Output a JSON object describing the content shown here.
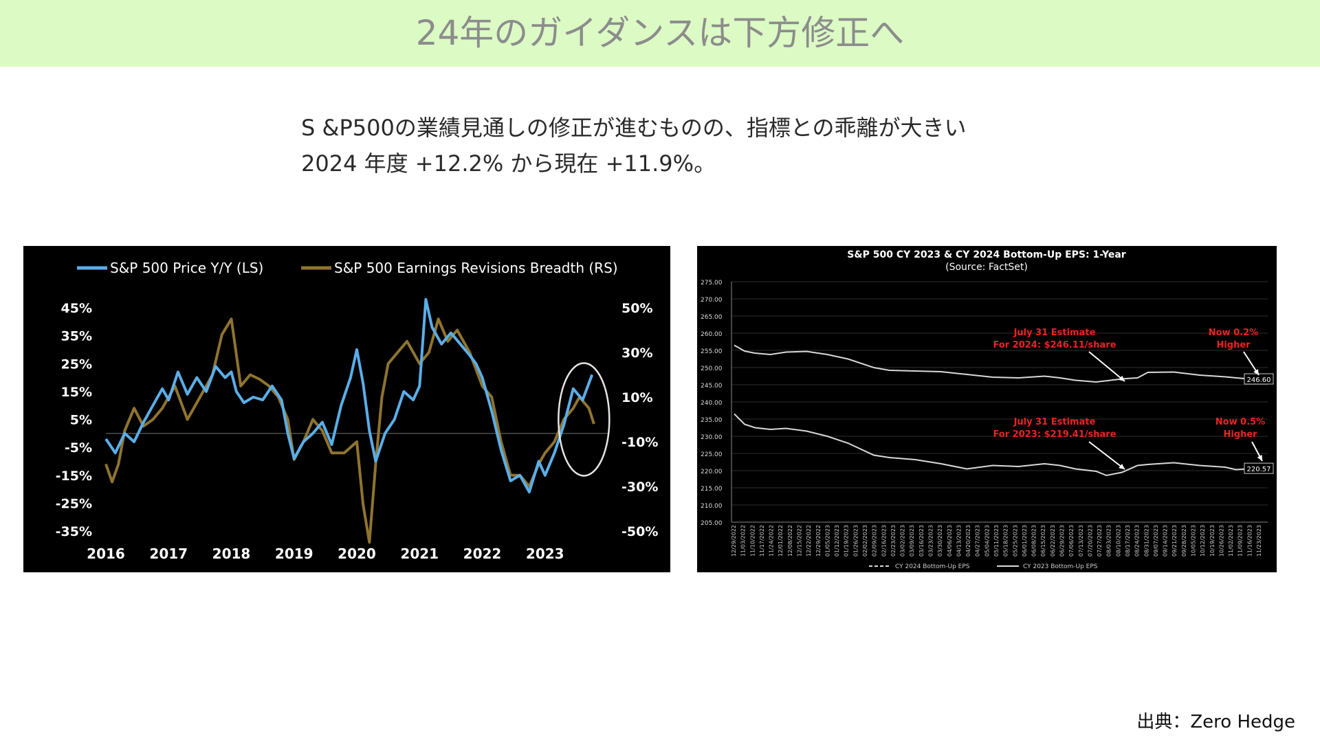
{
  "page": {
    "title": "24年のガイダンスは下方修正へ",
    "lead_line1": "S &P500の業績見通しの修正が進むものの、指標との乖離が大きい",
    "lead_line2": "2024 年度 +12.2% から現在 +11.9%。",
    "source": "出典：Zero Hedge"
  },
  "chart_data": [
    {
      "type": "line",
      "title": "",
      "legend": [
        "S&P 500 Price Y/Y (LS)",
        "S&P 500 Earnings Revisions Breadth (RS)"
      ],
      "legend_position": "top",
      "x_ticks": [
        "2016",
        "2017",
        "2018",
        "2019",
        "2020",
        "2021",
        "2022",
        "2023"
      ],
      "y_left_ticks": [
        "45%",
        "35%",
        "25%",
        "15%",
        "5%",
        "-5%",
        "-15%",
        "-25%",
        "-35%"
      ],
      "y_right_ticks": [
        "50%",
        "30%",
        "10%",
        "-10%",
        "-30%",
        "-50%"
      ],
      "y_left_range": [
        -35,
        45
      ],
      "y_right_range": [
        -50,
        50
      ],
      "x_range": [
        2016.0,
        2024.0
      ],
      "colors": {
        "price": "#5aaee8",
        "breadth": "#8f7430",
        "background": "#000000",
        "axis_text": "#ffffff",
        "circle": "#e6e6e6"
      },
      "annotation": "circle around latest values",
      "series": [
        {
          "name": "S&P 500 Price Y/Y (LS)",
          "axis": "left",
          "x": [
            2016.0,
            2016.15,
            2016.3,
            2016.45,
            2016.6,
            2016.75,
            2016.9,
            2017.0,
            2017.15,
            2017.3,
            2017.45,
            2017.6,
            2017.75,
            2017.9,
            2018.0,
            2018.08,
            2018.2,
            2018.35,
            2018.5,
            2018.65,
            2018.8,
            2018.9,
            2019.0,
            2019.15,
            2019.3,
            2019.45,
            2019.6,
            2019.75,
            2019.9,
            2020.0,
            2020.1,
            2020.2,
            2020.3,
            2020.45,
            2020.6,
            2020.75,
            2020.9,
            2021.0,
            2021.1,
            2021.2,
            2021.35,
            2021.5,
            2021.65,
            2021.8,
            2021.9,
            2022.0,
            2022.15,
            2022.3,
            2022.45,
            2022.6,
            2022.75,
            2022.9,
            2023.0,
            2023.15,
            2023.3,
            2023.45,
            2023.6,
            2023.75
          ],
          "y": [
            -2,
            -7,
            0,
            -3,
            4,
            10,
            16,
            12,
            22,
            14,
            20,
            15,
            24,
            20,
            22,
            15,
            11,
            13,
            12,
            17,
            12,
            0,
            -9,
            -3,
            0,
            4,
            -4,
            10,
            20,
            30,
            18,
            1,
            -10,
            0,
            5,
            15,
            12,
            17,
            48,
            38,
            32,
            36,
            32,
            28,
            25,
            20,
            8,
            -6,
            -17,
            -15,
            -21,
            -10,
            -15,
            -7,
            3,
            16,
            12,
            21
          ]
        },
        {
          "name": "S&P 500 Earnings Revisions Breadth (RS)",
          "axis": "right",
          "x": [
            2016.0,
            2016.1,
            2016.2,
            2016.3,
            2016.45,
            2016.6,
            2016.75,
            2016.9,
            2017.1,
            2017.3,
            2017.5,
            2017.7,
            2017.85,
            2018.0,
            2018.05,
            2018.15,
            2018.3,
            2018.45,
            2018.6,
            2018.75,
            2018.9,
            2019.0,
            2019.15,
            2019.3,
            2019.45,
            2019.6,
            2019.8,
            2020.0,
            2020.1,
            2020.2,
            2020.3,
            2020.4,
            2020.5,
            2020.65,
            2020.8,
            2021.0,
            2021.15,
            2021.3,
            2021.45,
            2021.6,
            2021.8,
            2022.0,
            2022.15,
            2022.3,
            2022.45,
            2022.6,
            2022.75,
            2022.9,
            2023.0,
            2023.15,
            2023.3,
            2023.45,
            2023.55,
            2023.7,
            2023.78
          ],
          "y": [
            -20,
            -28,
            -20,
            -5,
            5,
            -3,
            0,
            5,
            15,
            0,
            10,
            20,
            38,
            45,
            35,
            15,
            20,
            18,
            15,
            10,
            0,
            -18,
            -10,
            0,
            -5,
            -15,
            -15,
            -10,
            -38,
            -55,
            -20,
            10,
            25,
            30,
            35,
            25,
            30,
            45,
            35,
            40,
            30,
            15,
            10,
            -10,
            -25,
            -25,
            -30,
            -20,
            -15,
            -10,
            0,
            5,
            10,
            5,
            -2
          ]
        }
      ]
    },
    {
      "type": "line",
      "title": "S&P 500 CY 2023 & CY 2024 Bottom-Up  EPS: 1-Year",
      "subtitle": "(Source: FactSet)",
      "ylim": [
        205,
        275
      ],
      "y_ticks": [
        "275.00",
        "270.00",
        "265.00",
        "260.00",
        "255.00",
        "250.00",
        "245.00",
        "240.00",
        "235.00",
        "230.00",
        "225.00",
        "220.00",
        "215.00",
        "210.00",
        "205.00"
      ],
      "x_ticks": [
        "12/29/2022",
        "11/03/2022",
        "11/10/2022",
        "11/17/2022",
        "11/24/2022",
        "12/01/2022",
        "12/08/2022",
        "12/15/2022",
        "12/22/2022",
        "12/29/2022",
        "01/05/2023",
        "01/12/2023",
        "01/19/2023",
        "01/26/2023",
        "02/02/2023",
        "02/09/2023",
        "02/16/2023",
        "02/23/2023",
        "03/02/2023",
        "03/09/2023",
        "03/16/2023",
        "03/23/2023",
        "03/30/2023",
        "04/06/2023",
        "04/13/2023",
        "04/20/2023",
        "04/27/2023",
        "05/04/2023",
        "05/11/2023",
        "05/18/2023",
        "05/25/2023",
        "06/01/2023",
        "06/08/2023",
        "06/15/2023",
        "06/22/2023",
        "06/29/2023",
        "07/06/2023",
        "07/13/2023",
        "07/20/2023",
        "07/27/2023",
        "08/03/2023",
        "08/10/2023",
        "08/17/2023",
        "08/24/2023",
        "08/31/2023",
        "09/07/2023",
        "09/14/2023",
        "09/21/2023",
        "09/28/2023",
        "10/05/2023",
        "10/12/2023",
        "10/19/2023",
        "10/26/2023",
        "11/02/2023",
        "11/09/2023",
        "11/16/2023",
        "11/23/2023"
      ],
      "legend": [
        "CY 2024 Bottom-Up EPS",
        "CY 2023 Bottom-Up EPS"
      ],
      "legend_position": "bottom",
      "colors": {
        "line": "#d9d9d9",
        "annotation_text": "#ee2222",
        "background": "#000000",
        "grid": "#2e2e2e"
      },
      "annotations": [
        {
          "text_line1": "July 31 Estimate",
          "text_line2": "For 2024: $246.11/share"
        },
        {
          "text_line1": "Now 0.2%",
          "text_line2": "Higher"
        },
        {
          "text_line1": "July 31 Estimate",
          "text_line2": "For 2023: $219.41/share"
        },
        {
          "text_line1": "Now 0.5%",
          "text_line2": "Higher"
        }
      ],
      "end_labels": [
        "246.60",
        "220.57"
      ],
      "series": [
        {
          "name": "CY 2024 Bottom-Up EPS",
          "x": [
            0,
            0.02,
            0.04,
            0.07,
            0.1,
            0.14,
            0.18,
            0.22,
            0.27,
            0.3,
            0.35,
            0.4,
            0.45,
            0.5,
            0.55,
            0.6,
            0.63,
            0.66,
            0.7,
            0.75,
            0.78,
            0.8,
            0.85,
            0.9,
            0.95,
            1.0
          ],
          "y": [
            256.5,
            254.8,
            254.2,
            253.8,
            254.5,
            254.7,
            253.8,
            252.5,
            250.0,
            249.2,
            249.0,
            248.8,
            248.0,
            247.2,
            247.0,
            247.5,
            247.0,
            246.3,
            245.8,
            246.7,
            247.0,
            248.6,
            248.7,
            247.8,
            247.3,
            246.6
          ]
        },
        {
          "name": "CY 2023 Bottom-Up EPS",
          "x": [
            0,
            0.02,
            0.04,
            0.07,
            0.1,
            0.14,
            0.18,
            0.22,
            0.27,
            0.3,
            0.35,
            0.4,
            0.45,
            0.5,
            0.55,
            0.6,
            0.63,
            0.66,
            0.7,
            0.72,
            0.75,
            0.78,
            0.8,
            0.85,
            0.9,
            0.95,
            0.97,
            1.0
          ],
          "y": [
            236.5,
            233.5,
            232.5,
            232.0,
            232.3,
            231.5,
            230.0,
            228.0,
            224.5,
            223.8,
            223.2,
            222.0,
            220.5,
            221.5,
            221.2,
            222.0,
            221.5,
            220.5,
            219.8,
            218.6,
            219.5,
            221.5,
            221.8,
            222.3,
            221.5,
            221.0,
            220.3,
            220.57
          ]
        }
      ]
    }
  ]
}
